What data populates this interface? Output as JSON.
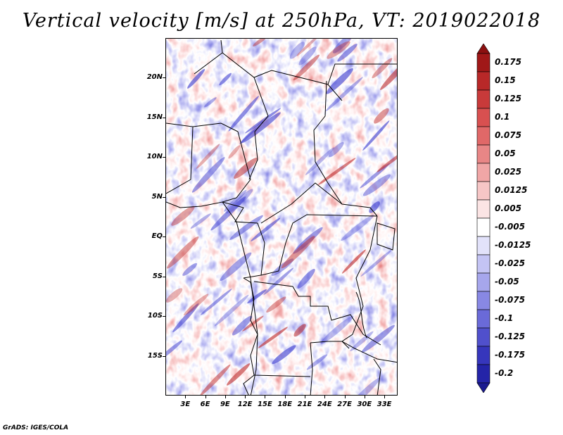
{
  "title": "Vertical velocity [m/s] at 250hPa, VT: 2019022018",
  "credit": "GrADS: IGES/COLA",
  "map": {
    "lon_range": [
      0,
      35
    ],
    "lat_range": [
      -20,
      25
    ],
    "lat_labels": [
      {
        "value": 20,
        "text": "20N"
      },
      {
        "value": 15,
        "text": "15N"
      },
      {
        "value": 10,
        "text": "10N"
      },
      {
        "value": 5,
        "text": "5N"
      },
      {
        "value": 0,
        "text": "EQ"
      },
      {
        "value": -5,
        "text": "5S"
      },
      {
        "value": -10,
        "text": "10S"
      },
      {
        "value": -15,
        "text": "15S"
      }
    ],
    "lon_labels": [
      {
        "value": 3,
        "text": "3E"
      },
      {
        "value": 6,
        "text": "6E"
      },
      {
        "value": 9,
        "text": "9E"
      },
      {
        "value": 12,
        "text": "12E"
      },
      {
        "value": 15,
        "text": "15E"
      },
      {
        "value": 18,
        "text": "18E"
      },
      {
        "value": 21,
        "text": "21E"
      },
      {
        "value": 24,
        "text": "24E"
      },
      {
        "value": 27,
        "text": "27E"
      },
      {
        "value": 30,
        "text": "30E"
      },
      {
        "value": 33,
        "text": "33E"
      }
    ],
    "rising_color": "#c03030",
    "sinking_color": "#4040d0"
  },
  "colorbar": {
    "levels": [
      {
        "label": "0.175",
        "color": "#a01818"
      },
      {
        "label": "0.15",
        "color": "#b82828"
      },
      {
        "label": "0.125",
        "color": "#c83a3a"
      },
      {
        "label": "0.1",
        "color": "#d85050"
      },
      {
        "label": "0.075",
        "color": "#e06868"
      },
      {
        "label": "0.05",
        "color": "#e88686"
      },
      {
        "label": "0.025",
        "color": "#f0a6a6"
      },
      {
        "label": "0.0125",
        "color": "#f6c6c6"
      },
      {
        "label": "0.005",
        "color": "#fbe4e4"
      },
      {
        "label": "-0.005",
        "color": "#ffffff"
      },
      {
        "label": "-0.0125",
        "color": "#e2e2fa"
      },
      {
        "label": "-0.025",
        "color": "#c4c4f4"
      },
      {
        "label": "-0.05",
        "color": "#a6a6ec"
      },
      {
        "label": "-0.075",
        "color": "#8888e4"
      },
      {
        "label": "-0.1",
        "color": "#6a6ad8"
      },
      {
        "label": "-0.125",
        "color": "#5050cc"
      },
      {
        "label": "-0.175",
        "color": "#3636bc"
      },
      {
        "label": "-0.2",
        "color": "#2424a8"
      }
    ],
    "top_arrow_color": "#8c1010",
    "bottom_arrow_color": "#1a1a90"
  }
}
